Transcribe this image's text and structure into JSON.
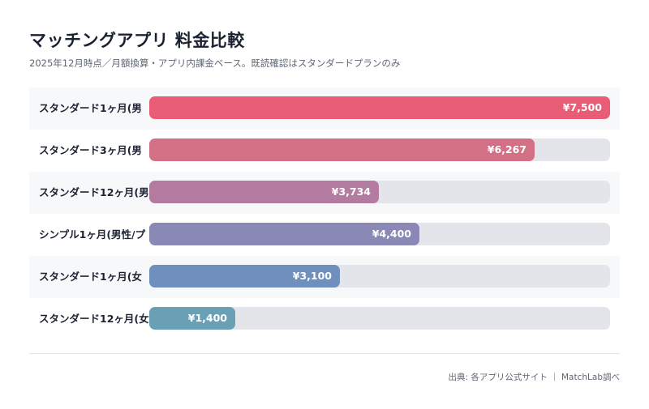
{
  "header": {
    "title": "マッチングアプリ 料金比較",
    "subtitle": "2025年12月時点／月額換算・アプリ内課金ベース。既読確認はスタンダードプランのみ"
  },
  "footer": {
    "source": "出典: 各アプリ公式サイト ｜ MatchLab調べ"
  },
  "chart_data": {
    "type": "bar",
    "orientation": "horizontal",
    "title": "マッチングアプリ 料金比較",
    "subtitle": "2025年12月時点／月額換算・アプリ内課金ベース。既読確認はスタンダードプランのみ",
    "categories": [
      "スタンダード1ヶ月(男",
      "スタンダード3ヶ月(男",
      "スタンダード12ヶ月(男",
      "シンプル1ヶ月(男性/プ",
      "スタンダード1ヶ月(女",
      "スタンダード12ヶ月(女"
    ],
    "values": [
      7500,
      6267,
      3734,
      4400,
      3100,
      1400
    ],
    "value_labels": [
      "¥7,500",
      "¥6,267",
      "¥3,734",
      "¥4,400",
      "¥3,100",
      "¥1,400"
    ],
    "xlim": [
      0,
      7500
    ],
    "colors": [
      "#e85d75",
      "#d47086",
      "#b37b9f",
      "#8a88b4",
      "#6f8fbd",
      "#69a0b5"
    ],
    "track_color": "#e4e5ea",
    "grid": false
  }
}
